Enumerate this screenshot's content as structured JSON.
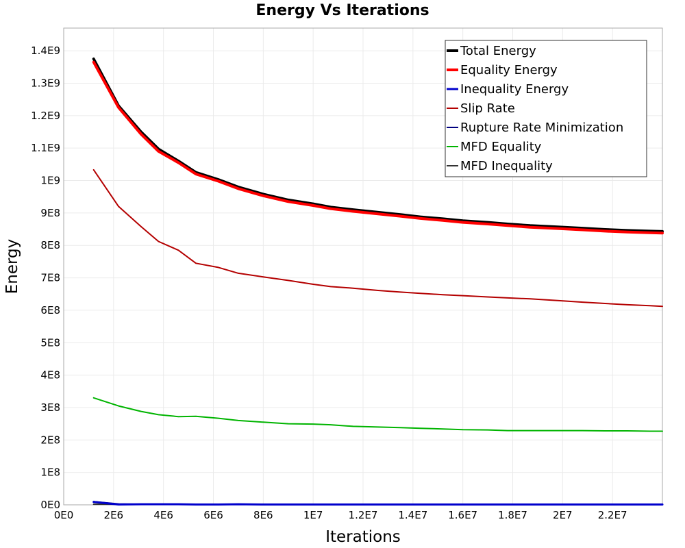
{
  "chart_data": {
    "type": "line",
    "title": "Energy Vs Iterations",
    "xlabel": "Iterations",
    "ylabel": "Energy",
    "xlim": [
      0,
      24000000
    ],
    "ylim": [
      0,
      1470000000
    ],
    "grid": true,
    "legend_position": "top-right",
    "xticks": [
      {
        "value": 0,
        "label": "0E0"
      },
      {
        "value": 2000000,
        "label": "2E6"
      },
      {
        "value": 4000000,
        "label": "4E6"
      },
      {
        "value": 6000000,
        "label": "6E6"
      },
      {
        "value": 8000000,
        "label": "8E6"
      },
      {
        "value": 10000000,
        "label": "1E7"
      },
      {
        "value": 12000000,
        "label": "1.2E7"
      },
      {
        "value": 14000000,
        "label": "1.4E7"
      },
      {
        "value": 16000000,
        "label": "1.6E7"
      },
      {
        "value": 18000000,
        "label": "1.8E7"
      },
      {
        "value": 20000000,
        "label": "2E7"
      },
      {
        "value": 22000000,
        "label": "2.2E7"
      }
    ],
    "yticks": [
      {
        "value": 0,
        "label": "0E0"
      },
      {
        "value": 100000000,
        "label": "1E8"
      },
      {
        "value": 200000000,
        "label": "2E8"
      },
      {
        "value": 300000000,
        "label": "3E8"
      },
      {
        "value": 400000000,
        "label": "4E8"
      },
      {
        "value": 500000000,
        "label": "5E8"
      },
      {
        "value": 600000000,
        "label": "6E8"
      },
      {
        "value": 700000000,
        "label": "7E8"
      },
      {
        "value": 800000000,
        "label": "8E8"
      },
      {
        "value": 900000000,
        "label": "9E8"
      },
      {
        "value": 1000000000,
        "label": "1E9"
      },
      {
        "value": 1100000000,
        "label": "1.1E9"
      },
      {
        "value": 1200000000,
        "label": "1.2E9"
      },
      {
        "value": 1300000000,
        "label": "1.3E9"
      },
      {
        "value": 1400000000,
        "label": "1.4E9"
      }
    ],
    "x": [
      1200000,
      2200000,
      3100000,
      3800000,
      4600000,
      5300000,
      6200000,
      7000000,
      8000000,
      9000000,
      10000000,
      10700000,
      11600000,
      12600000,
      13500000,
      14300000,
      15200000,
      16000000,
      17000000,
      17800000,
      18700000,
      19800000,
      20800000,
      21700000,
      22600000,
      23500000,
      24000000
    ],
    "series": [
      {
        "name": "Total Energy",
        "color": "#000000",
        "width": 4,
        "values": [
          1375000000,
          1230000000,
          1150000000,
          1097000000,
          1060000000,
          1025000000,
          1003000000,
          980000000,
          958000000,
          940000000,
          928000000,
          918000000,
          910000000,
          902000000,
          895000000,
          888000000,
          882000000,
          876000000,
          871000000,
          866000000,
          861000000,
          857000000,
          853000000,
          849000000,
          846000000,
          844000000,
          843000000
        ]
      },
      {
        "name": "Equality Energy",
        "color": "#ff0000",
        "width": 4,
        "values": [
          1365000000,
          1225000000,
          1143000000,
          1090000000,
          1055000000,
          1020000000,
          998000000,
          975000000,
          953000000,
          935000000,
          923000000,
          913000000,
          905000000,
          897000000,
          890000000,
          883000000,
          877000000,
          871000000,
          866000000,
          861000000,
          856000000,
          852000000,
          848000000,
          844000000,
          841000000,
          839000000,
          838000000
        ]
      },
      {
        "name": "Inequality Energy",
        "color": "#0000cc",
        "width": 3,
        "values": [
          9000000,
          1000000,
          2000000,
          2000000,
          2000000,
          1000000,
          1000000,
          2000000,
          1000000,
          1000000,
          1000000,
          1000000,
          1000000,
          1000000,
          1000000,
          1000000,
          1000000,
          1000000,
          1000000,
          1000000,
          1000000,
          1000000,
          1000000,
          1000000,
          1000000,
          1000000,
          1000000
        ]
      },
      {
        "name": "Slip Rate",
        "color": "#b40000",
        "width": 2,
        "values": [
          1033000000,
          920000000,
          858000000,
          812000000,
          785000000,
          745000000,
          732000000,
          714000000,
          703000000,
          692000000,
          680000000,
          673000000,
          668000000,
          661000000,
          656000000,
          652000000,
          648000000,
          645000000,
          641000000,
          638000000,
          635000000,
          630000000,
          625000000,
          621000000,
          617000000,
          614000000,
          612000000
        ]
      },
      {
        "name": "Rupture Rate Minimization",
        "color": "#000080",
        "width": 2,
        "values": [
          10000000,
          3000000,
          2000000,
          2000000,
          2000000,
          1000000,
          1000000,
          1000000,
          1000000,
          1000000,
          1000000,
          1000000,
          1000000,
          1000000,
          1000000,
          1000000,
          1000000,
          1000000,
          1000000,
          1000000,
          1000000,
          1000000,
          1000000,
          1000000,
          1000000,
          1000000,
          1000000
        ]
      },
      {
        "name": "MFD Equality",
        "color": "#00b400",
        "width": 2,
        "values": [
          330000000,
          305000000,
          288000000,
          278000000,
          272000000,
          273000000,
          267000000,
          260000000,
          255000000,
          250000000,
          249000000,
          247000000,
          242000000,
          240000000,
          238000000,
          236000000,
          234000000,
          232000000,
          231000000,
          229000000,
          229000000,
          229000000,
          229000000,
          228000000,
          228000000,
          227000000,
          227000000
        ]
      },
      {
        "name": "MFD Inequality",
        "color": "#333333",
        "width": 2,
        "values": [
          2000000,
          2000000,
          2000000,
          2000000,
          2000000,
          2000000,
          2000000,
          2000000,
          2000000,
          2000000,
          2000000,
          2000000,
          2000000,
          2000000,
          2000000,
          2000000,
          2000000,
          2000000,
          2000000,
          2000000,
          2000000,
          2000000,
          2000000,
          2000000,
          2000000,
          2000000,
          2000000
        ]
      }
    ]
  }
}
